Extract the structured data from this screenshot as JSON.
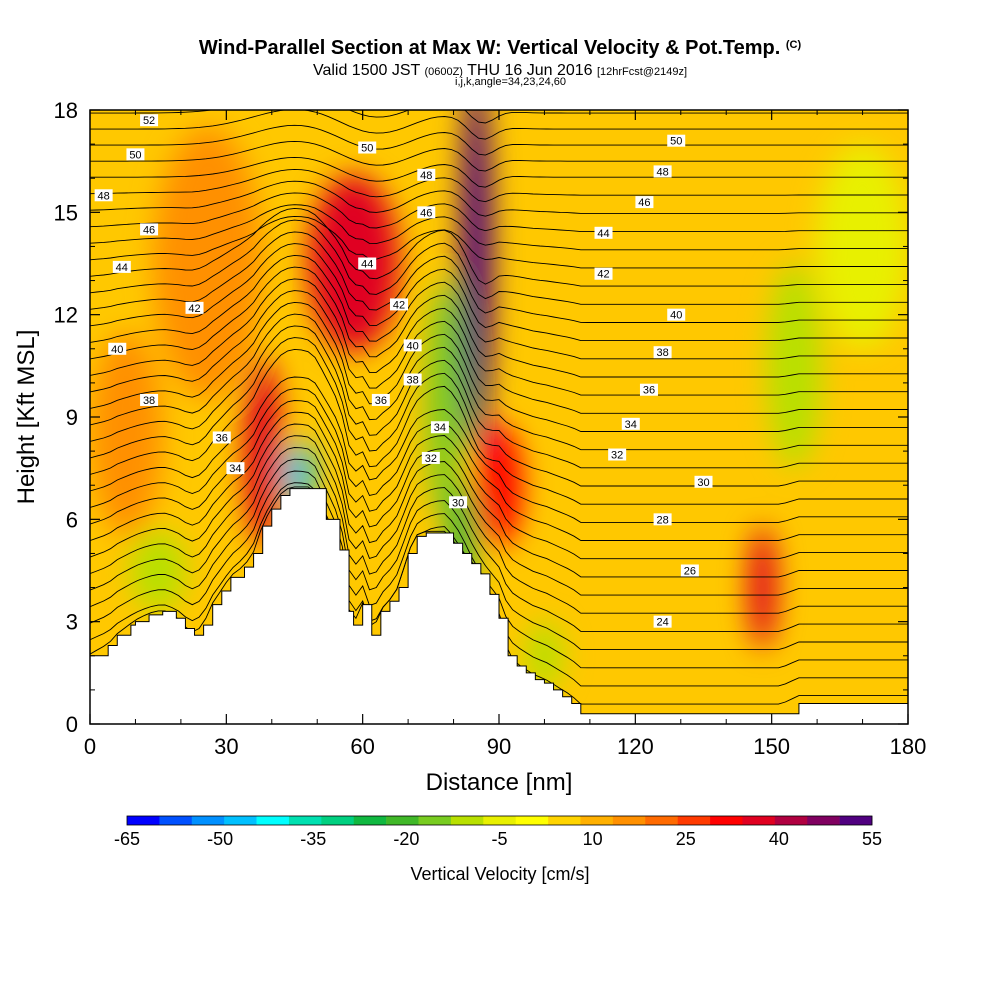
{
  "title": {
    "main": "Wind-Parallel Section at Max W: Vertical Velocity & Pot.Temp.",
    "main_suffix": "(C)",
    "sub_prefix": "Valid 1500 JST",
    "sub_zulu": "(0600Z)",
    "sub_date": "THU 16 Jun 2016",
    "sub_fcst": "[12hrFcst@2149z]",
    "indices": "i,j,k,angle=34,23,24,60"
  },
  "chart_data": {
    "type": "heatmap",
    "xlabel": "Distance [nm]",
    "ylabel": "Height [Kft MSL]",
    "xlim": [
      0,
      180
    ],
    "ylim": [
      0,
      18
    ],
    "x_ticks": [
      0,
      30,
      60,
      90,
      120,
      150,
      180
    ],
    "y_ticks": [
      0,
      3,
      6,
      9,
      12,
      15,
      18
    ],
    "colorbar": {
      "label": "Vertical Velocity [cm/s]",
      "tick_labels": [
        "-65",
        "-50",
        "-35",
        "-20",
        "-5",
        "10",
        "25",
        "40",
        "55"
      ],
      "colors": [
        "#0000ff",
        "#0050ff",
        "#0090ff",
        "#00c0ff",
        "#00ffff",
        "#00e0b0",
        "#00d080",
        "#10b840",
        "#40b828",
        "#78cc20",
        "#b8e000",
        "#e8f000",
        "#ffff00",
        "#ffd400",
        "#ffb000",
        "#ff9000",
        "#ff6a00",
        "#ff3a00",
        "#ff0000",
        "#e00020",
        "#b00040",
        "#800060",
        "#500080"
      ]
    },
    "terrain_profile": {
      "x": [
        0,
        4,
        6,
        9,
        10,
        13,
        16,
        19,
        21,
        23,
        25,
        27,
        29,
        31,
        34,
        36,
        38,
        40,
        42,
        44,
        46,
        49,
        52,
        55,
        57,
        58,
        60,
        62,
        64,
        66,
        68,
        70,
        72,
        74,
        76,
        78,
        80,
        82,
        84,
        86,
        88,
        90,
        92,
        94,
        96,
        98,
        100,
        102,
        104,
        106,
        108,
        111,
        114,
        117,
        120,
        124,
        128,
        132,
        136,
        140,
        144,
        148,
        152,
        156,
        160,
        164,
        168,
        172,
        176,
        180
      ],
      "height": [
        2.0,
        2.3,
        2.6,
        2.9,
        3.0,
        3.2,
        3.3,
        3.1,
        2.8,
        2.6,
        2.9,
        3.5,
        3.9,
        4.3,
        4.6,
        5.0,
        5.8,
        6.3,
        6.7,
        6.9,
        6.9,
        6.9,
        6.0,
        5.1,
        3.3,
        2.9,
        3.5,
        2.6,
        3.3,
        3.6,
        4.0,
        5.0,
        5.5,
        5.6,
        5.6,
        5.6,
        5.3,
        5.0,
        4.7,
        4.4,
        3.8,
        3.1,
        2.0,
        1.7,
        1.5,
        1.3,
        1.2,
        1.0,
        0.8,
        0.6,
        0.3,
        0.3,
        0.3,
        0.3,
        0.3,
        0.3,
        0.3,
        0.3,
        0.3,
        0.3,
        0.3,
        0.3,
        0.3,
        0.6,
        0.6,
        0.6,
        0.6,
        0.6,
        0.6,
        0.6
      ]
    },
    "vertical_velocity_features": [
      {
        "name": "",
        "x": 58,
        "y": 13.5,
        "rx": 10,
        "ry": 2.6,
        "value": 35
      },
      {
        "name": "",
        "x": 85,
        "y": 13.5,
        "rx": 3.5,
        "ry": 5.5,
        "value": 55
      },
      {
        "name": "",
        "x": 90,
        "y": 7.0,
        "rx": 5,
        "ry": 1.8,
        "value": 32
      },
      {
        "name": "",
        "x": 38,
        "y": 8.0,
        "rx": 4,
        "ry": 2.8,
        "value": 38
      },
      {
        "name": "",
        "x": 148,
        "y": 4.0,
        "rx": 3,
        "ry": 1.8,
        "value": 38
      },
      {
        "name": "",
        "x": 78,
        "y": 9.5,
        "rx": 4,
        "ry": 3.5,
        "value": -15
      },
      {
        "name": "",
        "x": 46,
        "y": 7.3,
        "rx": 3,
        "ry": 1.0,
        "value": -45
      },
      {
        "name": "",
        "x": 82,
        "y": 5.5,
        "rx": 3,
        "ry": 1.5,
        "value": -25
      },
      {
        "name": "",
        "x": 155,
        "y": 10.5,
        "rx": 6,
        "ry": 3.0,
        "value": -10
      },
      {
        "name": "",
        "x": 15,
        "y": 4.5,
        "rx": 6,
        "ry": 1.2,
        "value": -12
      },
      {
        "name": "",
        "x": 100,
        "y": 2.0,
        "rx": 4,
        "ry": 1.0,
        "value": -10
      },
      {
        "name": "",
        "x": 26,
        "y": 13.5,
        "rx": 12,
        "ry": 4.0,
        "value": 18
      },
      {
        "name": "",
        "x": 8,
        "y": 8.5,
        "rx": 8,
        "ry": 3.0,
        "value": 15
      },
      {
        "name": "",
        "x": 170,
        "y": 14.0,
        "rx": 10,
        "ry": 3.0,
        "value": -3
      }
    ],
    "isentrope_labels": [
      {
        "text": "52",
        "x": 13,
        "y": 17.7
      },
      {
        "text": "50",
        "x": 10,
        "y": 16.7
      },
      {
        "text": "48",
        "x": 3,
        "y": 15.5
      },
      {
        "text": "46",
        "x": 13,
        "y": 14.5
      },
      {
        "text": "44",
        "x": 7,
        "y": 13.4
      },
      {
        "text": "42",
        "x": 23,
        "y": 12.2
      },
      {
        "text": "40",
        "x": 6,
        "y": 11.0
      },
      {
        "text": "38",
        "x": 13,
        "y": 9.5
      },
      {
        "text": "36",
        "x": 29,
        "y": 8.4
      },
      {
        "text": "34",
        "x": 32,
        "y": 7.5
      },
      {
        "text": "50",
        "x": 61,
        "y": 16.9
      },
      {
        "text": "48",
        "x": 74,
        "y": 16.1
      },
      {
        "text": "46",
        "x": 74,
        "y": 15.0
      },
      {
        "text": "44",
        "x": 61,
        "y": 13.5
      },
      {
        "text": "42",
        "x": 68,
        "y": 12.3
      },
      {
        "text": "40",
        "x": 71,
        "y": 11.1
      },
      {
        "text": "38",
        "x": 71,
        "y": 10.1
      },
      {
        "text": "36",
        "x": 64,
        "y": 9.5
      },
      {
        "text": "34",
        "x": 77,
        "y": 8.7
      },
      {
        "text": "32",
        "x": 75,
        "y": 7.8
      },
      {
        "text": "30",
        "x": 81,
        "y": 6.5
      },
      {
        "text": "50",
        "x": 129,
        "y": 17.1
      },
      {
        "text": "48",
        "x": 126,
        "y": 16.2
      },
      {
        "text": "46",
        "x": 122,
        "y": 15.3
      },
      {
        "text": "44",
        "x": 113,
        "y": 14.4
      },
      {
        "text": "42",
        "x": 113,
        "y": 13.2
      },
      {
        "text": "40",
        "x": 129,
        "y": 12.0
      },
      {
        "text": "38",
        "x": 126,
        "y": 10.9
      },
      {
        "text": "36",
        "x": 123,
        "y": 9.8
      },
      {
        "text": "34",
        "x": 119,
        "y": 8.8
      },
      {
        "text": "32",
        "x": 116,
        "y": 7.9
      },
      {
        "text": "30",
        "x": 135,
        "y": 7.1
      },
      {
        "text": "28",
        "x": 126,
        "y": 6.0
      },
      {
        "text": "26",
        "x": 132,
        "y": 4.5
      },
      {
        "text": "24",
        "x": 126,
        "y": 3.0
      }
    ]
  }
}
